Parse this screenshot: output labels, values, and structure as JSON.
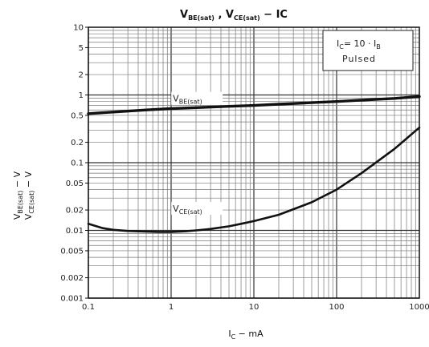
{
  "chart_data": {
    "type": "line",
    "title": "VBE(sat) , VCE(sat) − IC",
    "title_parts": [
      {
        "text": "V",
        "sub": "BE(sat)"
      },
      {
        "text": " , V",
        "sub": "CE(sat)"
      },
      {
        "text": "  −  IC",
        "sub": ""
      }
    ],
    "xlabel": "IC − mA",
    "xlabel_parts": {
      "main": "I",
      "sub": "C",
      "rest": " − mA"
    },
    "ylabel_line1": "VBE(sat) − V",
    "ylabel_line2": "VCE(sat)  −  V",
    "ylabel_parts": {
      "line1": {
        "main": "V",
        "sub": "BE(sat)",
        "rest": " − V"
      },
      "line2": {
        "main": "V",
        "sub": "CE(sat)",
        "rest": "  −  V"
      }
    },
    "x_scale": "log",
    "y_scale": "log",
    "xlim": [
      0.1,
      1000
    ],
    "ylim": [
      0.001,
      10
    ],
    "x_ticks": [
      {
        "value": 0.1,
        "label": "0.1"
      },
      {
        "value": 1,
        "label": "1"
      },
      {
        "value": 10,
        "label": "10"
      },
      {
        "value": 100,
        "label": "100"
      },
      {
        "value": 1000,
        "label": "1000"
      }
    ],
    "y_ticks": [
      {
        "value": 10,
        "label": "10"
      },
      {
        "value": 5,
        "label": "5"
      },
      {
        "value": 2,
        "label": "2"
      },
      {
        "value": 1,
        "label": "1"
      },
      {
        "value": 0.5,
        "label": "0.5"
      },
      {
        "value": 0.2,
        "label": "0.2"
      },
      {
        "value": 0.1,
        "label": "0.1"
      },
      {
        "value": 0.05,
        "label": "0.05"
      },
      {
        "value": 0.02,
        "label": "0.02"
      },
      {
        "value": 0.01,
        "label": "0.01"
      },
      {
        "value": 0.005,
        "label": "0.005"
      },
      {
        "value": 0.002,
        "label": "0.002"
      },
      {
        "value": 0.001,
        "label": "0.001"
      }
    ],
    "grid": true,
    "series": [
      {
        "name": "VBE(sat)",
        "label_main": "V",
        "label_sub": "BE(sat)",
        "label_at": {
          "x": 1.05,
          "y": 0.8
        },
        "x": [
          0.1,
          0.2,
          0.5,
          1,
          2,
          5,
          10,
          20,
          50,
          100,
          200,
          500,
          1000
        ],
        "y": [
          0.53,
          0.56,
          0.6,
          0.63,
          0.65,
          0.68,
          0.7,
          0.73,
          0.77,
          0.8,
          0.84,
          0.89,
          0.95
        ]
      },
      {
        "name": "VCE(sat)",
        "label_main": "V",
        "label_sub": "CE(sat)",
        "label_at": {
          "x": 1.05,
          "y": 0.019
        },
        "x": [
          0.1,
          0.15,
          0.2,
          0.3,
          0.5,
          0.7,
          1,
          1.5,
          2,
          3,
          5,
          7,
          10,
          20,
          50,
          100,
          200,
          500,
          1000
        ],
        "y": [
          0.0125,
          0.0108,
          0.0102,
          0.0098,
          0.0096,
          0.0095,
          0.0095,
          0.0097,
          0.01,
          0.0105,
          0.0115,
          0.0125,
          0.0137,
          0.017,
          0.026,
          0.04,
          0.07,
          0.16,
          0.33
        ]
      }
    ],
    "annotation": {
      "line1": {
        "main": "I",
        "sub": "C",
        "rest": "= 10 · I",
        "sub2": "B"
      },
      "line2": "Pulsed",
      "position": "top-right"
    }
  }
}
